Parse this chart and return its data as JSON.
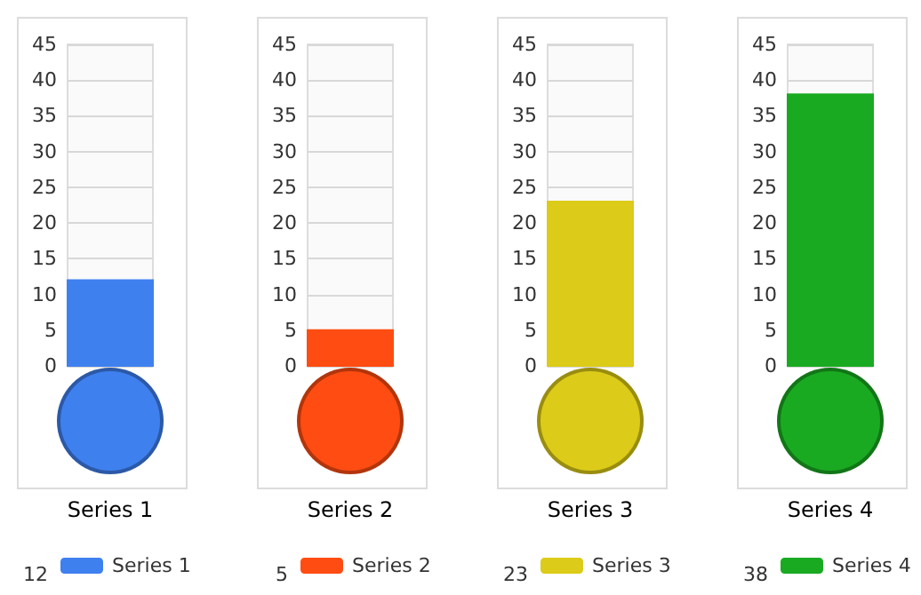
{
  "chart_data": [
    {
      "type": "bar",
      "categories": [
        "Series 1"
      ],
      "series": [
        {
          "name": "Series 1",
          "color": "#3f80ef",
          "values": [
            12
          ]
        }
      ],
      "ylim": [
        0,
        45
      ],
      "yticks": [
        0,
        5,
        10,
        15,
        20,
        25,
        30,
        35,
        40,
        45
      ],
      "grid": "y",
      "legend": "bottom",
      "annotations": [
        "12"
      ]
    },
    {
      "type": "bar",
      "categories": [
        "Series 2"
      ],
      "series": [
        {
          "name": "Series 2",
          "color": "#ff4c12",
          "values": [
            5
          ]
        }
      ],
      "ylim": [
        0,
        45
      ],
      "yticks": [
        0,
        5,
        10,
        15,
        20,
        25,
        30,
        35,
        40,
        45
      ],
      "grid": "y",
      "legend": "bottom",
      "annotations": [
        "5"
      ]
    },
    {
      "type": "bar",
      "categories": [
        "Series 3"
      ],
      "series": [
        {
          "name": "Series 3",
          "color": "#dccb18",
          "values": [
            23
          ]
        }
      ],
      "ylim": [
        0,
        45
      ],
      "yticks": [
        0,
        5,
        10,
        15,
        20,
        25,
        30,
        35,
        40,
        45
      ],
      "grid": "y",
      "legend": "bottom",
      "annotations": [
        "23"
      ]
    },
    {
      "type": "bar",
      "categories": [
        "Series 4"
      ],
      "series": [
        {
          "name": "Series 4",
          "color": "#1aaa22",
          "values": [
            38
          ]
        }
      ],
      "ylim": [
        0,
        45
      ],
      "yticks": [
        0,
        5,
        10,
        15,
        20,
        25,
        30,
        35,
        40,
        45
      ],
      "grid": "y",
      "legend": "bottom",
      "annotations": [
        "38"
      ]
    }
  ]
}
